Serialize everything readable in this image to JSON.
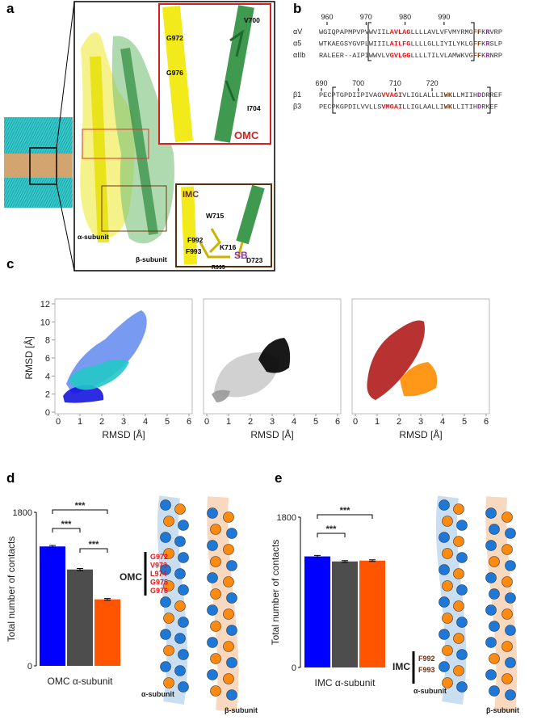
{
  "panel_a": {
    "label": "a",
    "omc_inset": {
      "title": "OMC",
      "residues": [
        "G972",
        "G976",
        "V700",
        "I704"
      ]
    },
    "imc_inset": {
      "title": "IMC",
      "residues": [
        "W715",
        "F992",
        "K716",
        "F993",
        "R995",
        "D723"
      ],
      "salt_bridge": "SB"
    },
    "alpha_label": "α-subunit",
    "beta_label": "β-subunit"
  },
  "panel_b": {
    "label": "b",
    "alpha": {
      "numbers": [
        960,
        970,
        980,
        990
      ],
      "rows": [
        {
          "name": "αV",
          "segments": [
            {
              "text": "WGIQPAPMPVPVWVIIL",
              "color": "#333333"
            },
            {
              "text": "AVLAG",
              "color": "#e8141b"
            },
            {
              "text": "LLLLAVLVFVMYRMG",
              "color": "#333333"
            },
            {
              "text": "FF",
              "color": "#7a3b12"
            },
            {
              "text": "K",
              "color": "#333333"
            },
            {
              "text": "R",
              "color": "#8b2fa0"
            },
            {
              "text": "VRP",
              "color": "#333333"
            }
          ]
        },
        {
          "name": "α5",
          "segments": [
            {
              "text": "WTKAEGSYGVPLWIIIL",
              "color": "#333333"
            },
            {
              "text": "AILFG",
              "color": "#e8141b"
            },
            {
              "text": "LLLLGLLIYILYKLG",
              "color": "#333333"
            },
            {
              "text": "FF",
              "color": "#7a3b12"
            },
            {
              "text": "K",
              "color": "#333333"
            },
            {
              "text": "R",
              "color": "#8b2fa0"
            },
            {
              "text": "SLP",
              "color": "#333333"
            }
          ]
        },
        {
          "name": "αIIb",
          "segments": [
            {
              "text": "RALEER--AIPIWWVLV",
              "color": "#333333"
            },
            {
              "text": "GVLGG",
              "color": "#e8141b"
            },
            {
              "text": "LLLLTILVLAMWKVG",
              "color": "#333333"
            },
            {
              "text": "FF",
              "color": "#7a3b12"
            },
            {
              "text": "K",
              "color": "#333333"
            },
            {
              "text": "R",
              "color": "#8b2fa0"
            },
            {
              "text": "NRP",
              "color": "#333333"
            }
          ]
        }
      ]
    },
    "beta": {
      "numbers": [
        690,
        700,
        710,
        720
      ],
      "rows": [
        {
          "name": "β1",
          "segments": [
            {
              "text": "PECPTGPDIIPIVAG",
              "color": "#333333"
            },
            {
              "text": "VVAGI",
              "color": "#e8141b"
            },
            {
              "text": "VLIGLALLLI",
              "color": "#333333"
            },
            {
              "text": "WK",
              "color": "#7a3b12"
            },
            {
              "text": "LLMIIH",
              "color": "#333333"
            },
            {
              "text": "D",
              "color": "#8b2fa0"
            },
            {
              "text": "DRREF",
              "color": "#333333"
            }
          ]
        },
        {
          "name": "β3",
          "segments": [
            {
              "text": "PECPKGPDILVVLLS",
              "color": "#333333"
            },
            {
              "text": "VMGAI",
              "color": "#e8141b"
            },
            {
              "text": "LLIGLAALLI",
              "color": "#333333"
            },
            {
              "text": "WK",
              "color": "#7a3b12"
            },
            {
              "text": "LLITIH",
              "color": "#333333"
            },
            {
              "text": "D",
              "color": "#8b2fa0"
            },
            {
              "text": "RKEF",
              "color": "#333333"
            }
          ]
        }
      ]
    }
  },
  "panel_c": {
    "label": "c",
    "plots": [
      {
        "xlabel": "RMSD [Å]",
        "ylabel": "RMSD [Å]",
        "xlim": [
          0,
          6
        ],
        "ylim": [
          0,
          12
        ],
        "xticks": [
          0,
          1,
          2,
          3,
          4,
          5,
          6
        ],
        "yticks": [
          0,
          2,
          4,
          6,
          8,
          10,
          12
        ]
      },
      {
        "xlabel": "RMSD [Å]",
        "xlim": [
          0,
          6
        ],
        "ylim": [
          0,
          12
        ],
        "xticks": [
          0,
          1,
          2,
          3,
          4,
          5,
          6
        ]
      },
      {
        "xlabel": "RMSD [Å]",
        "xlim": [
          0,
          6
        ],
        "ylim": [
          0,
          12
        ],
        "xticks": [
          0,
          1,
          2,
          3,
          4,
          5,
          6
        ]
      }
    ]
  },
  "chart_data": [
    {
      "type": "bar",
      "panel_label": "d",
      "xlabel": "OMC α-subunit",
      "ylabel": "Total number of contacts",
      "values": [
        1400,
        1130,
        780
      ],
      "errors": [
        12,
        12,
        10
      ],
      "colors": [
        "#0000ff",
        "#4d4d4d",
        "#ff5500"
      ],
      "ylim": [
        0,
        1800
      ],
      "yticks": [
        0,
        1800
      ],
      "significance": [
        {
          "text": "***",
          "between": [
            0,
            2
          ]
        },
        {
          "text": "***",
          "between": [
            0,
            1
          ]
        },
        {
          "text": "***",
          "between": [
            1,
            2
          ]
        }
      ],
      "region": {
        "title": "OMC",
        "residues": [
          "G972",
          "V973",
          "L974",
          "G975",
          "G976"
        ]
      },
      "subunit_labels": [
        "α-subunit",
        "β-subunit"
      ]
    },
    {
      "type": "bar",
      "panel_label": "e",
      "xlabel": "IMC α-subunit",
      "ylabel": "Total number of contacts",
      "values": [
        1330,
        1270,
        1280
      ],
      "errors": [
        12,
        10,
        10
      ],
      "colors": [
        "#0000ff",
        "#4d4d4d",
        "#ff5500"
      ],
      "ylim": [
        0,
        1800
      ],
      "yticks": [
        0,
        1800
      ],
      "significance": [
        {
          "text": "***",
          "between": [
            0,
            2
          ]
        },
        {
          "text": "***",
          "between": [
            0,
            1
          ]
        }
      ],
      "region": {
        "title": "IMC",
        "residues": [
          "F992",
          "F993"
        ]
      },
      "subunit_labels": [
        "α-subunit",
        "β-subunit"
      ]
    }
  ]
}
